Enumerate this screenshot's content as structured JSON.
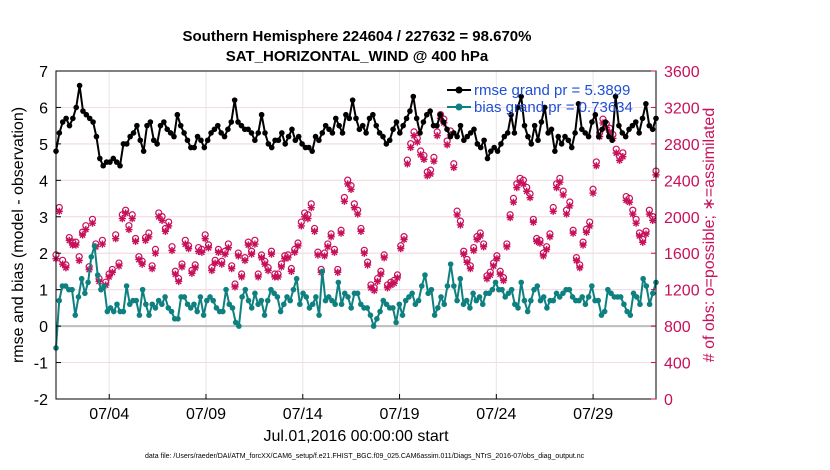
{
  "chart_data": {
    "type": "line",
    "title": "Southern Hemisphere 224604 / 227632 = 98.670%",
    "subtitle": "SAT_HORIZONTAL_WIND @ 400 hPa",
    "xlabel": "Jul.01,2016 00:00:00 start",
    "ylabel": "rmse and bias (model - observation)",
    "ylabel_right": "# of obs: o=possible; ∗=assimilated",
    "footer": "data file: /Users/raeder/DAI/ATM_forcXX/CAM6_setup/f.e21.FHIST_BGC.f09_025.CAM6assim.011/Diags_NTrS_2016-07/obs_diag_output.nc",
    "xlim": [
      1.0,
      32.0
    ],
    "ylim": [
      -2,
      7
    ],
    "ylim_right": [
      0,
      3600
    ],
    "x_ticks": [
      3.75,
      8.75,
      13.75,
      18.75,
      23.75,
      28.75
    ],
    "x_tick_labels": [
      "07/04",
      "07/09",
      "07/14",
      "07/19",
      "07/24",
      "07/29"
    ],
    "y_ticks": [
      "-2",
      "-1",
      "0",
      "1",
      "2",
      "3",
      "4",
      "5",
      "6",
      "7"
    ],
    "y_ticks_right": [
      "0",
      "400",
      "800",
      "1200",
      "1600",
      "2000",
      "2400",
      "2800",
      "3200",
      "3600"
    ],
    "grid": true,
    "legend_position": "top-right",
    "series": [
      {
        "name": "rmse grand pr = 5.3899",
        "color": "#000000",
        "axis": "left",
        "values": [
          4.8,
          5.3,
          5.6,
          5.7,
          5.5,
          5.7,
          6.0,
          6.6,
          5.9,
          5.8,
          5.7,
          5.6,
          5.2,
          4.6,
          4.4,
          4.5,
          4.5,
          4.6,
          4.5,
          4.4,
          5.0,
          5.0,
          5.2,
          5.3,
          5.5,
          5.1,
          4.8,
          5.5,
          5.6,
          5.1,
          5.0,
          5.5,
          5.6,
          5.4,
          5.3,
          5.2,
          5.8,
          5.5,
          5.3,
          5.1,
          4.9,
          4.9,
          5.2,
          5.1,
          4.9,
          5.1,
          5.3,
          5.4,
          5.5,
          5.3,
          5.2,
          5.4,
          5.6,
          6.2,
          5.6,
          5.5,
          5.4,
          5.4,
          5.3,
          5.1,
          5.3,
          5.8,
          5.3,
          5.0,
          4.9,
          5.1,
          5.1,
          5.3,
          5.0,
          5.2,
          5.4,
          5.1,
          5.2,
          5.0,
          4.9,
          4.9,
          4.8,
          5.2,
          5.1,
          5.3,
          5.5,
          5.4,
          5.3,
          5.7,
          5.5,
          5.3,
          5.8,
          5.7,
          6.2,
          5.7,
          5.4,
          5.5,
          5.3,
          5.7,
          5.8,
          5.5,
          5.3,
          5.2,
          5.0,
          5.1,
          5.4,
          5.6,
          5.3,
          5.5,
          5.7,
          5.9,
          6.3,
          5.7,
          5.3,
          5.6,
          5.8,
          5.9,
          5.5,
          5.5,
          5.8,
          5.6,
          5.4,
          5.2,
          5.3,
          5.2,
          5.5,
          5.1,
          5.2,
          5.3,
          5.4,
          5.0,
          4.9,
          5.1,
          4.6,
          4.8,
          4.9,
          4.8,
          5.0,
          5.2,
          5.3,
          5.8,
          5.3,
          6.0,
          6.3,
          5.5,
          5.2,
          5.0,
          5.5,
          5.1,
          5.6,
          6.0,
          5.3,
          5.4,
          4.8,
          5.2,
          5.0,
          5.2,
          5.1,
          4.9,
          5.3,
          6.1,
          5.4,
          5.3,
          5.2,
          5.6,
          5.8,
          5.2,
          5.4,
          5.6,
          5.2,
          5.1,
          6.3,
          5.5,
          5.3,
          5.2,
          5.4,
          5.5,
          5.6,
          5.3,
          5.7,
          6.1,
          5.5,
          5.4,
          5.7
        ]
      },
      {
        "name": "bias grand pr = 0.73634",
        "color": "#0f8080",
        "axis": "left",
        "values": [
          -0.6,
          0.7,
          1.1,
          1.1,
          1.0,
          1.0,
          0.3,
          0.8,
          1.3,
          0.9,
          1.2,
          1.9,
          2.2,
          1.4,
          1.0,
          1.1,
          0.4,
          0.5,
          0.4,
          0.6,
          0.4,
          0.4,
          1.1,
          0.6,
          0.7,
          0.7,
          0.3,
          1.0,
          0.6,
          0.3,
          0.6,
          0.5,
          0.7,
          0.6,
          0.8,
          0.5,
          0.4,
          0.2,
          0.2,
          0.8,
          0.8,
          0.6,
          0.5,
          0.6,
          0.4,
          0.8,
          0.3,
          0.7,
          0.8,
          0.7,
          0.5,
          0.4,
          0.4,
          1.0,
          0.6,
          0.5,
          0.1,
          0.0,
          0.8,
          1.0,
          0.7,
          0.5,
          0.9,
          0.6,
          0.7,
          0.3,
          0.7,
          1.0,
          0.9,
          0.8,
          0.4,
          0.6,
          0.8,
          0.7,
          1.0,
          1.3,
          0.6,
          0.9,
          0.8,
          0.5,
          0.6,
          0.8,
          0.3,
          1.5,
          0.7,
          0.8,
          0.7,
          0.6,
          1.2,
          0.6,
          0.9,
          0.8,
          0.5,
          0.9,
          0.9,
          0.6,
          0.5,
          0.5,
          0.3,
          0.0,
          0.2,
          0.4,
          0.7,
          0.6,
          0.5,
          0.5,
          0.1,
          0.6,
          0.3,
          0.7,
          0.8,
          0.9,
          0.6,
          0.7,
          1.1,
          1.4,
          0.9,
          1.0,
          0.3,
          0.5,
          0.8,
          0.6,
          1.1,
          1.7,
          1.1,
          0.7,
          1.3,
          0.6,
          0.7,
          0.5,
          0.9,
          0.7,
          0.8,
          0.6,
          0.9,
          0.9,
          1.0,
          1.2,
          1.0,
          1.0,
          0.8,
          0.9,
          1.0,
          0.6,
          0.5,
          1.2,
          0.7,
          0.4,
          0.7,
          1.0,
          1.1,
          0.7,
          0.8,
          0.5,
          0.7,
          0.7,
          0.9,
          0.8,
          0.9,
          1.0,
          1.0,
          0.8,
          0.7,
          0.7,
          0.8,
          0.6,
          0.8,
          1.1,
          0.7,
          0.7,
          0.3,
          0.4,
          1.0,
          0.9,
          0.8,
          0.8,
          0.8,
          0.6,
          0.4,
          0.3,
          0.9,
          0.8,
          0.6,
          1.3,
          1.1,
          0.6,
          0.9,
          1.2
        ]
      },
      {
        "name": "# of obs possible",
        "color": "#c8105a",
        "axis": "right",
        "marker": "o",
        "values": [
          1560,
          2080,
          1500,
          1450,
          1750,
          1700,
          1700,
          1540,
          1810,
          1880,
          1430,
          1950,
          1680,
          1300,
          1720,
          1260,
          1350,
          1400,
          1780,
          1470,
          2000,
          2050,
          1880,
          2000,
          1740,
          1540,
          1490,
          1750,
          1800,
          1440,
          1620,
          2020,
          1980,
          1850,
          1920,
          1650,
          1380,
          1300,
          1460,
          1720,
          1660,
          1390,
          1450,
          1640,
          1620,
          1780,
          1670,
          1420,
          1500,
          1620,
          1490,
          1600,
          1680,
          1440,
          1240,
          1580,
          1350,
          1530,
          1700,
          1600,
          1720,
          1350,
          1560,
          1490,
          1420,
          1600,
          1350,
          1350,
          1460,
          1550,
          1560,
          1410,
          1620,
          1690,
          1920,
          2020,
          2000,
          2120,
          1850,
          1590,
          1400,
          1580,
          1680,
          1790,
          1620,
          1400,
          1830,
          2190,
          2380,
          2320,
          2120,
          2050,
          1850,
          1610,
          1480,
          1230,
          1200,
          1300,
          1380,
          1560,
          1230,
          1260,
          1280,
          1340,
          1660,
          1760,
          2600,
          2780,
          2910,
          2840,
          2700,
          2650,
          2470,
          2490,
          2630,
          2910,
          3100,
          3050,
          2810,
          2920,
          2560,
          2040,
          1930,
          1600,
          1510,
          1440,
          1640,
          1760,
          1800,
          1680,
          1330,
          1370,
          1470,
          1550,
          1380,
          1310,
          1680,
          2000,
          2180,
          2340,
          2400,
          2380,
          2300,
          2230,
          1950,
          1740,
          1720,
          1580,
          1650,
          1790,
          2080,
          2340,
          2400,
          2260,
          2050,
          2140,
          1830,
          1530,
          1450,
          1700,
          1840,
          1920,
          2280,
          2580,
          2900,
          3050,
          3000,
          2950,
          2880,
          2720,
          2640,
          2680,
          2200,
          2180,
          2050,
          1950,
          1800,
          1730,
          1820,
          2050,
          1980,
          2480
        ]
      },
      {
        "name": "# of obs assimilated",
        "color": "#c8105a",
        "axis": "right",
        "marker": "*",
        "values": [
          1540,
          2060,
          1480,
          1440,
          1740,
          1690,
          1690,
          1520,
          1800,
          1860,
          1420,
          1930,
          1670,
          1290,
          1700,
          1250,
          1340,
          1390,
          1760,
          1460,
          1980,
          2040,
          1860,
          1980,
          1730,
          1530,
          1480,
          1740,
          1780,
          1430,
          1600,
          2000,
          1960,
          1840,
          1900,
          1630,
          1370,
          1290,
          1450,
          1700,
          1650,
          1380,
          1440,
          1620,
          1610,
          1760,
          1660,
          1410,
          1490,
          1610,
          1480,
          1590,
          1660,
          1430,
          1230,
          1570,
          1340,
          1520,
          1690,
          1590,
          1700,
          1340,
          1550,
          1480,
          1410,
          1590,
          1340,
          1340,
          1450,
          1540,
          1550,
          1400,
          1610,
          1680,
          1900,
          2000,
          1980,
          2100,
          1840,
          1580,
          1390,
          1570,
          1670,
          1780,
          1610,
          1390,
          1820,
          2170,
          2360,
          2300,
          2100,
          2030,
          1840,
          1600,
          1470,
          1220,
          1190,
          1290,
          1370,
          1550,
          1220,
          1250,
          1270,
          1330,
          1650,
          1750,
          2580,
          2760,
          2890,
          2820,
          2680,
          2630,
          2450,
          2470,
          2610,
          2890,
          3080,
          3030,
          2790,
          2900,
          2540,
          2020,
          1910,
          1590,
          1500,
          1430,
          1630,
          1750,
          1790,
          1670,
          1320,
          1360,
          1460,
          1540,
          1370,
          1300,
          1670,
          1990,
          2160,
          2320,
          2380,
          2360,
          2280,
          2210,
          1940,
          1730,
          1710,
          1570,
          1640,
          1780,
          2060,
          2320,
          2380,
          2240,
          2030,
          2120,
          1820,
          1520,
          1440,
          1690,
          1830,
          1900,
          2260,
          2560,
          2880,
          3030,
          2980,
          2930,
          2860,
          2700,
          2620,
          2660,
          2180,
          2160,
          2030,
          1930,
          1790,
          1720,
          1810,
          2030,
          1960,
          2460
        ]
      }
    ]
  }
}
